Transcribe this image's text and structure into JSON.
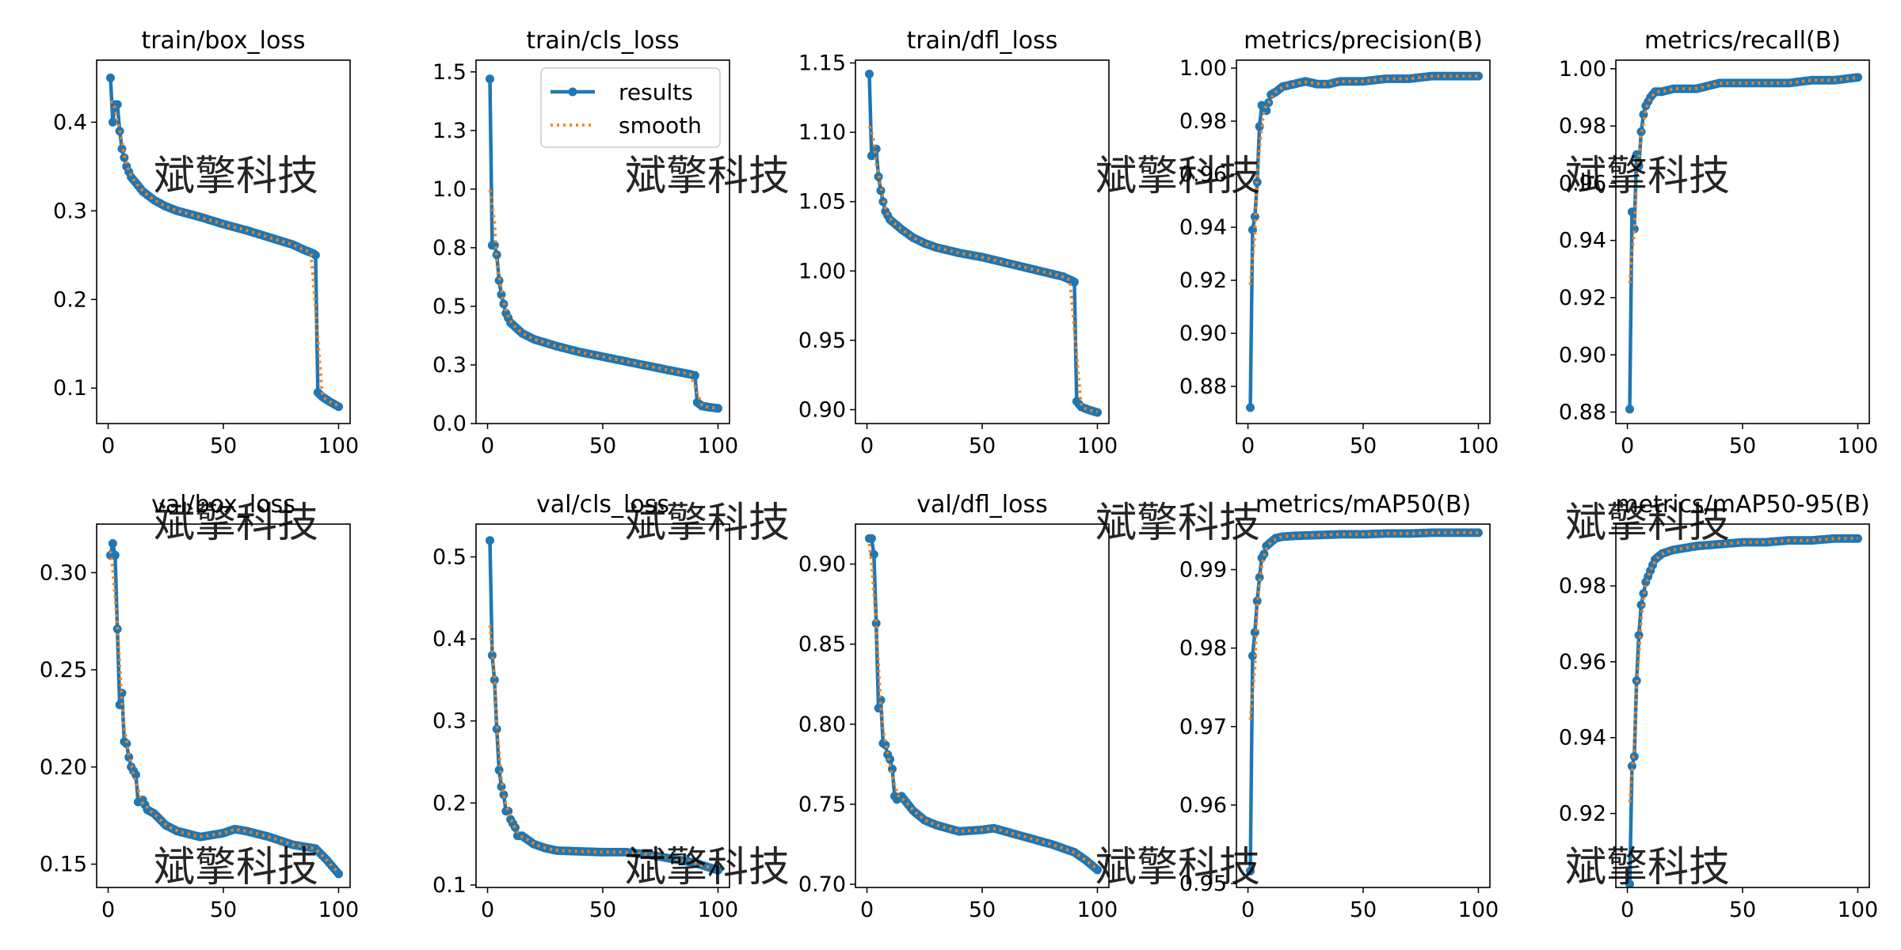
{
  "figure": {
    "watermark": "斌擎科技",
    "legend": {
      "results_label": "results",
      "smooth_label": "smooth",
      "results_color": "#1f77b4",
      "smooth_color": "#ff7f0e",
      "placement": "upper-right of train/cls_loss panel"
    }
  },
  "chart_data": [
    {
      "type": "line",
      "title": "train/box_loss",
      "xlim": [
        -5,
        105
      ],
      "ylim": [
        0.06,
        0.47
      ],
      "xticks": [
        0,
        50,
        100
      ],
      "yticks": [
        0.1,
        0.2,
        0.3,
        0.4
      ],
      "anchors": [
        [
          1,
          0.45
        ],
        [
          2,
          0.4
        ],
        [
          3,
          0.42
        ],
        [
          4,
          0.42
        ],
        [
          5,
          0.39
        ],
        [
          6,
          0.37
        ],
        [
          7,
          0.36
        ],
        [
          8,
          0.35
        ],
        [
          10,
          0.338
        ],
        [
          15,
          0.322
        ],
        [
          20,
          0.312
        ],
        [
          25,
          0.305
        ],
        [
          30,
          0.3
        ],
        [
          40,
          0.293
        ],
        [
          50,
          0.285
        ],
        [
          60,
          0.278
        ],
        [
          70,
          0.27
        ],
        [
          80,
          0.262
        ],
        [
          85,
          0.256
        ],
        [
          89,
          0.252
        ],
        [
          90,
          0.25
        ],
        [
          91,
          0.095
        ],
        [
          93,
          0.09
        ],
        [
          96,
          0.085
        ],
        [
          100,
          0.079
        ]
      ]
    },
    {
      "type": "line",
      "title": "train/cls_loss",
      "xlim": [
        -5,
        105
      ],
      "ylim": [
        0,
        1.55
      ],
      "xticks": [
        0,
        50,
        100
      ],
      "yticks": [
        0.0,
        0.25,
        0.5,
        0.75,
        1.0,
        1.25,
        1.5
      ],
      "legend": true,
      "anchors": [
        [
          1,
          1.47
        ],
        [
          2,
          0.76
        ],
        [
          3,
          0.76
        ],
        [
          4,
          0.72
        ],
        [
          5,
          0.61
        ],
        [
          6,
          0.55
        ],
        [
          7,
          0.51
        ],
        [
          8,
          0.47
        ],
        [
          10,
          0.43
        ],
        [
          15,
          0.385
        ],
        [
          20,
          0.36
        ],
        [
          30,
          0.33
        ],
        [
          40,
          0.305
        ],
        [
          50,
          0.285
        ],
        [
          60,
          0.265
        ],
        [
          70,
          0.245
        ],
        [
          80,
          0.225
        ],
        [
          88,
          0.21
        ],
        [
          90,
          0.205
        ],
        [
          91,
          0.09
        ],
        [
          93,
          0.075
        ],
        [
          96,
          0.07
        ],
        [
          100,
          0.065
        ]
      ]
    },
    {
      "type": "line",
      "title": "train/dfl_loss",
      "xlim": [
        -5,
        105
      ],
      "ylim": [
        0.89,
        1.152
      ],
      "xticks": [
        0,
        50,
        100
      ],
      "yticks": [
        0.9,
        0.95,
        1.0,
        1.05,
        1.1,
        1.15
      ],
      "anchors": [
        [
          1,
          1.142
        ],
        [
          2,
          1.083
        ],
        [
          3,
          1.088
        ],
        [
          4,
          1.088
        ],
        [
          5,
          1.068
        ],
        [
          6,
          1.058
        ],
        [
          7,
          1.05
        ],
        [
          8,
          1.043
        ],
        [
          10,
          1.037
        ],
        [
          15,
          1.03
        ],
        [
          20,
          1.024
        ],
        [
          25,
          1.02
        ],
        [
          30,
          1.017
        ],
        [
          40,
          1.013
        ],
        [
          50,
          1.01
        ],
        [
          60,
          1.006
        ],
        [
          70,
          1.002
        ],
        [
          80,
          0.998
        ],
        [
          85,
          0.996
        ],
        [
          89,
          0.993
        ],
        [
          90,
          0.992
        ],
        [
          91,
          0.906
        ],
        [
          93,
          0.902
        ],
        [
          96,
          0.9
        ],
        [
          100,
          0.898
        ]
      ]
    },
    {
      "type": "line",
      "title": "metrics/precision(B)",
      "xlim": [
        -5,
        105
      ],
      "ylim": [
        0.866,
        1.003
      ],
      "xticks": [
        0,
        50,
        100
      ],
      "yticks": [
        0.88,
        0.9,
        0.92,
        0.94,
        0.96,
        0.98,
        1.0
      ],
      "anchors": [
        [
          1,
          0.872
        ],
        [
          2,
          0.939
        ],
        [
          3,
          0.944
        ],
        [
          4,
          0.957
        ],
        [
          5,
          0.978
        ],
        [
          6,
          0.986
        ],
        [
          7,
          0.984
        ],
        [
          8,
          0.984
        ],
        [
          10,
          0.99
        ],
        [
          12,
          0.991
        ],
        [
          15,
          0.993
        ],
        [
          20,
          0.994
        ],
        [
          25,
          0.995
        ],
        [
          30,
          0.994
        ],
        [
          35,
          0.994
        ],
        [
          40,
          0.995
        ],
        [
          50,
          0.995
        ],
        [
          60,
          0.996
        ],
        [
          70,
          0.996
        ],
        [
          80,
          0.997
        ],
        [
          90,
          0.997
        ],
        [
          100,
          0.997
        ]
      ]
    },
    {
      "type": "line",
      "title": "metrics/recall(B)",
      "xlim": [
        -5,
        105
      ],
      "ylim": [
        0.876,
        1.003
      ],
      "xticks": [
        0,
        50,
        100
      ],
      "yticks": [
        0.88,
        0.9,
        0.92,
        0.94,
        0.96,
        0.98,
        1.0
      ],
      "anchors": [
        [
          1,
          0.881
        ],
        [
          2,
          0.95
        ],
        [
          3,
          0.944
        ],
        [
          4,
          0.97
        ],
        [
          5,
          0.966
        ],
        [
          6,
          0.978
        ],
        [
          7,
          0.984
        ],
        [
          8,
          0.987
        ],
        [
          10,
          0.99
        ],
        [
          12,
          0.992
        ],
        [
          15,
          0.992
        ],
        [
          20,
          0.993
        ],
        [
          25,
          0.993
        ],
        [
          30,
          0.993
        ],
        [
          35,
          0.994
        ],
        [
          40,
          0.995
        ],
        [
          50,
          0.995
        ],
        [
          60,
          0.995
        ],
        [
          70,
          0.995
        ],
        [
          80,
          0.996
        ],
        [
          90,
          0.996
        ],
        [
          100,
          0.997
        ]
      ]
    },
    {
      "type": "line",
      "title": "val/box_loss",
      "xlim": [
        -5,
        105
      ],
      "ylim": [
        0.138,
        0.325
      ],
      "xticks": [
        0,
        50,
        100
      ],
      "yticks": [
        0.15,
        0.2,
        0.25,
        0.3
      ],
      "anchors": [
        [
          1,
          0.309
        ],
        [
          2,
          0.315
        ],
        [
          3,
          0.309
        ],
        [
          4,
          0.271
        ],
        [
          5,
          0.232
        ],
        [
          6,
          0.238
        ],
        [
          7,
          0.213
        ],
        [
          8,
          0.212
        ],
        [
          9,
          0.205
        ],
        [
          10,
          0.2
        ],
        [
          12,
          0.196
        ],
        [
          13,
          0.182
        ],
        [
          15,
          0.183
        ],
        [
          17,
          0.178
        ],
        [
          20,
          0.176
        ],
        [
          25,
          0.17
        ],
        [
          30,
          0.167
        ],
        [
          40,
          0.164
        ],
        [
          50,
          0.166
        ],
        [
          55,
          0.168
        ],
        [
          60,
          0.167
        ],
        [
          70,
          0.164
        ],
        [
          80,
          0.16
        ],
        [
          90,
          0.158
        ],
        [
          95,
          0.152
        ],
        [
          100,
          0.145
        ]
      ]
    },
    {
      "type": "line",
      "title": "val/cls_loss",
      "xlim": [
        -5,
        105
      ],
      "ylim": [
        0.097,
        0.54
      ],
      "xticks": [
        0,
        50,
        100
      ],
      "yticks": [
        0.1,
        0.2,
        0.3,
        0.4,
        0.5
      ],
      "anchors": [
        [
          1,
          0.52
        ],
        [
          2,
          0.38
        ],
        [
          3,
          0.35
        ],
        [
          4,
          0.29
        ],
        [
          5,
          0.24
        ],
        [
          6,
          0.22
        ],
        [
          7,
          0.21
        ],
        [
          8,
          0.19
        ],
        [
          9,
          0.19
        ],
        [
          10,
          0.18
        ],
        [
          12,
          0.17
        ],
        [
          13,
          0.16
        ],
        [
          15,
          0.16
        ],
        [
          20,
          0.15
        ],
        [
          25,
          0.145
        ],
        [
          30,
          0.142
        ],
        [
          40,
          0.141
        ],
        [
          50,
          0.14
        ],
        [
          60,
          0.14
        ],
        [
          70,
          0.137
        ],
        [
          80,
          0.132
        ],
        [
          90,
          0.127
        ],
        [
          100,
          0.118
        ]
      ]
    },
    {
      "type": "line",
      "title": "val/dfl_loss",
      "xlim": [
        -5,
        105
      ],
      "ylim": [
        0.698,
        0.925
      ],
      "xticks": [
        0,
        50,
        100
      ],
      "yticks": [
        0.7,
        0.75,
        0.8,
        0.85,
        0.9
      ],
      "anchors": [
        [
          1,
          0.916
        ],
        [
          2,
          0.916
        ],
        [
          3,
          0.906
        ],
        [
          4,
          0.863
        ],
        [
          5,
          0.81
        ],
        [
          6,
          0.815
        ],
        [
          7,
          0.788
        ],
        [
          8,
          0.787
        ],
        [
          9,
          0.781
        ],
        [
          10,
          0.778
        ],
        [
          11,
          0.772
        ],
        [
          12,
          0.755
        ],
        [
          13,
          0.753
        ],
        [
          15,
          0.755
        ],
        [
          20,
          0.746
        ],
        [
          25,
          0.74
        ],
        [
          30,
          0.737
        ],
        [
          40,
          0.733
        ],
        [
          50,
          0.734
        ],
        [
          55,
          0.735
        ],
        [
          60,
          0.733
        ],
        [
          70,
          0.729
        ],
        [
          80,
          0.725
        ],
        [
          90,
          0.72
        ],
        [
          95,
          0.715
        ],
        [
          100,
          0.709
        ]
      ]
    },
    {
      "type": "line",
      "title": "metrics/mAP50(B)",
      "xlim": [
        -5,
        105
      ],
      "ylim": [
        0.9495,
        0.9958
      ],
      "xticks": [
        0,
        50,
        100
      ],
      "yticks": [
        0.95,
        0.96,
        0.97,
        0.98,
        0.99
      ],
      "anchors": [
        [
          1,
          0.9516
        ],
        [
          2,
          0.979
        ],
        [
          3,
          0.982
        ],
        [
          4,
          0.986
        ],
        [
          5,
          0.989
        ],
        [
          6,
          0.9915
        ],
        [
          7,
          0.992
        ],
        [
          8,
          0.993
        ],
        [
          10,
          0.9935
        ],
        [
          12,
          0.994
        ],
        [
          15,
          0.9942
        ],
        [
          20,
          0.9943
        ],
        [
          30,
          0.9944
        ],
        [
          40,
          0.9945
        ],
        [
          50,
          0.9945
        ],
        [
          60,
          0.9946
        ],
        [
          70,
          0.9946
        ],
        [
          80,
          0.9947
        ],
        [
          90,
          0.9947
        ],
        [
          100,
          0.9947
        ]
      ]
    },
    {
      "type": "line",
      "title": "metrics/mAP50-95(B)",
      "xlim": [
        -5,
        105
      ],
      "ylim": [
        0.9005,
        0.9963
      ],
      "xticks": [
        0,
        50,
        100
      ],
      "yticks": [
        0.92,
        0.94,
        0.96,
        0.98
      ],
      "anchors": [
        [
          1,
          0.9014
        ],
        [
          2,
          0.9325
        ],
        [
          3,
          0.935
        ],
        [
          4,
          0.955
        ],
        [
          5,
          0.967
        ],
        [
          6,
          0.975
        ],
        [
          7,
          0.978
        ],
        [
          8,
          0.981
        ],
        [
          10,
          0.984
        ],
        [
          12,
          0.987
        ],
        [
          15,
          0.9885
        ],
        [
          20,
          0.9895
        ],
        [
          30,
          0.9905
        ],
        [
          40,
          0.991
        ],
        [
          50,
          0.9915
        ],
        [
          60,
          0.9915
        ],
        [
          70,
          0.992
        ],
        [
          80,
          0.992
        ],
        [
          90,
          0.9925
        ],
        [
          100,
          0.9925
        ]
      ]
    }
  ]
}
